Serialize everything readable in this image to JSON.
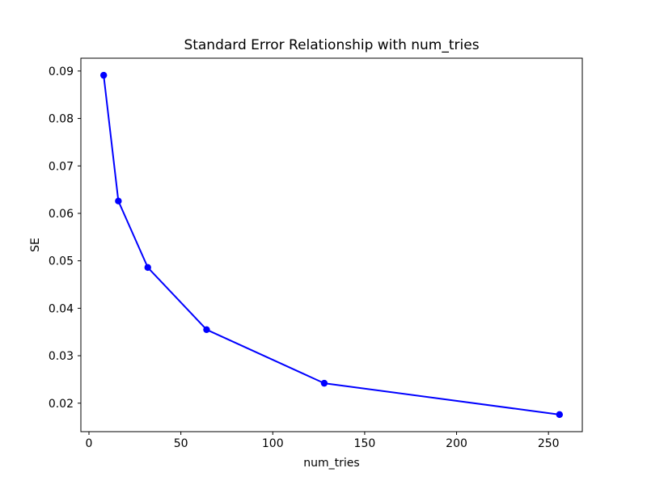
{
  "figure": {
    "background": "#ffffff",
    "spine_color": "#000000",
    "text_color": "#000000"
  },
  "chart_data": {
    "type": "line",
    "title": "Standard Error Relationship with num_tries",
    "xlabel": "num_tries",
    "ylabel": "SE",
    "x": [
      8,
      16,
      32,
      64,
      128,
      256
    ],
    "y": [
      0.0891,
      0.0626,
      0.0486,
      0.0355,
      0.0242,
      0.0176
    ],
    "xlim": [
      -4.4,
      268.4
    ],
    "ylim": [
      0.014,
      0.0927
    ],
    "xticks": [
      0,
      50,
      100,
      150,
      200,
      250
    ],
    "yticks": [
      0.02,
      0.03,
      0.04,
      0.05,
      0.06,
      0.07,
      0.08,
      0.09
    ],
    "ytick_decimals": 2,
    "line_color": "#0000ff",
    "marker": "circle",
    "marker_radius": 4.2,
    "line_width": 2,
    "grid": false,
    "legend": null
  }
}
